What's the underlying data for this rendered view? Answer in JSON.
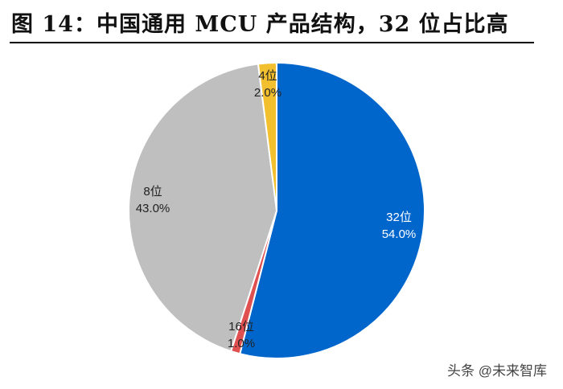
{
  "title": "图 14：中国通用 MCU 产品结构，32 位占比高",
  "chart_data": {
    "type": "pie",
    "start_angle_deg": 0,
    "direction": "clockwise",
    "slices": [
      {
        "label": "32位",
        "value": 54.0,
        "value_label": "54.0%",
        "color": "#0066CC",
        "label_color": "#ffffff"
      },
      {
        "label": "16位",
        "value": 1.0,
        "value_label": "1.0%",
        "color": "#E05050",
        "label_color": "#222222"
      },
      {
        "label": "8位",
        "value": 43.0,
        "value_label": "43.0%",
        "color": "#BFBFBF",
        "label_color": "#222222"
      },
      {
        "label": "4位",
        "value": 2.0,
        "value_label": "2.0%",
        "color": "#F2C02E",
        "label_color": "#222222"
      }
    ]
  },
  "watermark": "头条 @未来智库"
}
